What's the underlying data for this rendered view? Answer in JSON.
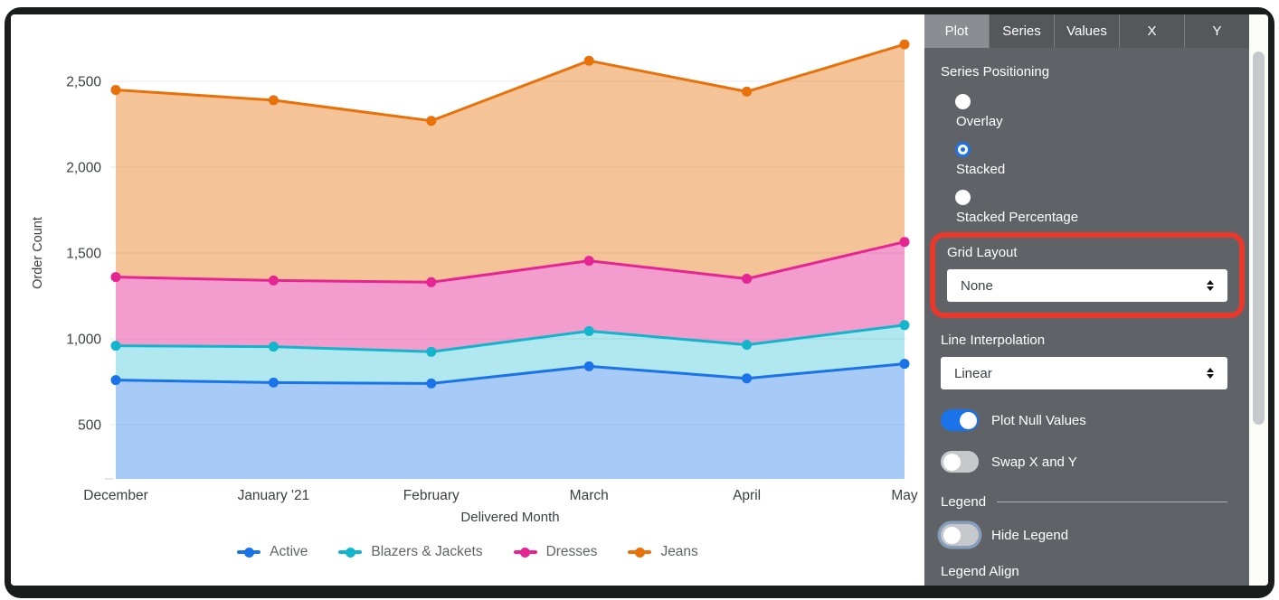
{
  "chart_data": {
    "type": "area",
    "stacked": true,
    "x": [
      "December",
      "January '21",
      "February",
      "March",
      "April",
      "May"
    ],
    "xlabel": "Delivered Month",
    "ylabel": "Order Count",
    "yticks": [
      500,
      1000,
      1500,
      2000,
      2500
    ],
    "ylim": [
      185,
      2815
    ],
    "grid": true,
    "legend_position": "bottom",
    "series": [
      {
        "name": "Active",
        "color": "#1A73E8",
        "values": [
          760,
          745,
          740,
          840,
          770,
          855
        ]
      },
      {
        "name": "Blazers & Jackets",
        "color": "#12B5CB",
        "values": [
          200,
          210,
          185,
          205,
          195,
          225
        ]
      },
      {
        "name": "Dresses",
        "color": "#E52592",
        "values": [
          400,
          385,
          405,
          410,
          385,
          485
        ]
      },
      {
        "name": "Jeans",
        "color": "#E8710A",
        "values": [
          1090,
          1050,
          940,
          1165,
          1090,
          1150
        ]
      }
    ],
    "stacked_totals": {
      "Active": [
        760,
        745,
        740,
        840,
        770,
        855
      ],
      "Blazers & Jackets": [
        960,
        955,
        925,
        1045,
        965,
        1080
      ],
      "Dresses": [
        1360,
        1340,
        1330,
        1455,
        1350,
        1565
      ],
      "Jeans": [
        2450,
        2390,
        2270,
        2620,
        2440,
        2715
      ]
    }
  },
  "panel": {
    "tabs": [
      {
        "label": "Plot",
        "active": true
      },
      {
        "label": "Series",
        "active": false
      },
      {
        "label": "Values",
        "active": false
      },
      {
        "label": "X",
        "active": false
      },
      {
        "label": "Y",
        "active": false
      }
    ],
    "series_positioning": {
      "label": "Series Positioning",
      "options": [
        {
          "label": "Overlay",
          "selected": false
        },
        {
          "label": "Stacked",
          "selected": true
        },
        {
          "label": "Stacked Percentage",
          "selected": false
        }
      ]
    },
    "grid_layout": {
      "label": "Grid Layout",
      "value": "None"
    },
    "line_interpolation": {
      "label": "Line Interpolation",
      "value": "Linear"
    },
    "plot_null_values": {
      "label": "Plot Null Values",
      "on": true
    },
    "swap_x_y": {
      "label": "Swap X and Y",
      "on": false
    },
    "legend_section_label": "Legend",
    "hide_legend": {
      "label": "Hide Legend",
      "on": false
    },
    "legend_align_label": "Legend Align"
  },
  "annotation": {
    "target": "Grid Layout",
    "color": "#E8382B"
  },
  "colors": {
    "accent_blue": "#1A73E8",
    "panel_bg": "#5F6368",
    "tab_bar_bg": "#54585B",
    "tab_active_bg": "#8A8E92",
    "toggle_off": "#C6C9CC",
    "annotation_red": "#E8382B"
  }
}
